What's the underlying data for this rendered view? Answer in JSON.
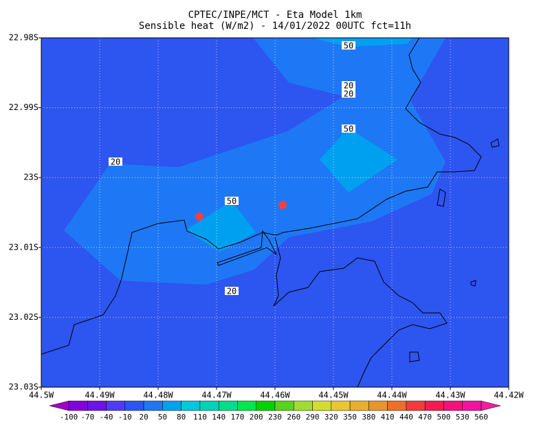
{
  "chart_data": {
    "type": "contour-map",
    "title": "CPTEC/INPE/MCT -  Eta Model 1km",
    "subtitle": "Sensible heat (W/m2) - 14/01/2022 00UTC fct=11h",
    "xlim": [
      -44.5,
      -44.42
    ],
    "xticks": [
      {
        "value": -44.5,
        "label": "44.5W"
      },
      {
        "value": -44.49,
        "label": "44.49W"
      },
      {
        "value": -44.48,
        "label": "44.48W"
      },
      {
        "value": -44.47,
        "label": "44.47W"
      },
      {
        "value": -44.46,
        "label": "44.46W"
      },
      {
        "value": -44.45,
        "label": "44.45W"
      },
      {
        "value": -44.44,
        "label": "44.44W"
      },
      {
        "value": -44.43,
        "label": "44.43W"
      },
      {
        "value": -44.42,
        "label": "44.42W"
      }
    ],
    "ylim": [
      -23.03,
      -22.98
    ],
    "yticks": [
      {
        "value": -22.98,
        "label": "22.98S"
      },
      {
        "value": -22.99,
        "label": "22.99S"
      },
      {
        "value": -23.0,
        "label": "23S"
      },
      {
        "value": -23.01,
        "label": "23.01S"
      },
      {
        "value": -23.02,
        "label": "23.02S"
      },
      {
        "value": -23.03,
        "label": "23.03S"
      }
    ],
    "grid": true,
    "contour_labels": [
      50,
      20,
      20,
      50,
      20,
      50,
      20
    ],
    "colorbar": {
      "levels": [
        -100,
        -70,
        -40,
        -10,
        20,
        50,
        80,
        110,
        140,
        170,
        200,
        230,
        260,
        290,
        320,
        350,
        380,
        410,
        440,
        470,
        500,
        530,
        560
      ],
      "colors": [
        "#a000c8",
        "#8200dc",
        "#6e14e6",
        "#503cf0",
        "#2d55f0",
        "#1e78f5",
        "#00a0f0",
        "#00c8dc",
        "#00d2b4",
        "#00dc8c",
        "#00e650",
        "#00d200",
        "#5ad21e",
        "#a0dc32",
        "#d2dc32",
        "#e6c832",
        "#e6af2d",
        "#e6962d",
        "#f06e28",
        "#f03c3c",
        "#f01e50",
        "#f0147a",
        "#f0149f",
        "#f01ea0"
      ]
    }
  }
}
